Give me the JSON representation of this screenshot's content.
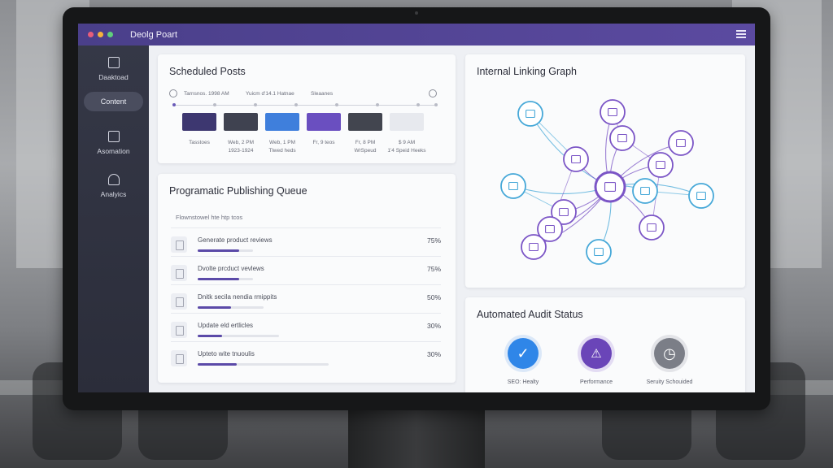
{
  "app": {
    "title": "Deolg Poart",
    "window_dots": [
      "#e85d7a",
      "#f5b23d",
      "#5fcf7c"
    ]
  },
  "sidebar": {
    "items": [
      {
        "label": "Daaktoad",
        "icon": "dashboard-icon"
      },
      {
        "label": "Content",
        "icon": null,
        "active": true
      },
      {
        "label": "Asomation",
        "icon": "automation-icon"
      },
      {
        "label": "Analyics",
        "icon": "analytics-icon"
      }
    ]
  },
  "scheduled_posts": {
    "title": "Scheduled Posts",
    "meta_left": "Tarnsnos. 1998 AM",
    "meta_mid": "Yuicm d'14.1 Hatnae",
    "meta_right": "Sleaanes",
    "posts": [
      {
        "color": "#3d3770",
        "line1": "Tasstoes",
        "line2": ""
      },
      {
        "color": "#3f4250",
        "line1": "Web, 2 PM",
        "line2": "1923-1924"
      },
      {
        "color": "#3f7fdc",
        "line1": "Web, 1 PM",
        "line2": "Tlwed heds"
      },
      {
        "color": "#6a4fc0",
        "line1": "Fr, 9 teos",
        "line2": ""
      },
      {
        "color": "#42454f",
        "line1": "Fr, 8 PM",
        "line2": "WrSpeud"
      },
      {
        "color": "#e7e9ee",
        "line1": "$ 9 AM",
        "line2": "1'4 Speid Heeks"
      }
    ]
  },
  "queue": {
    "title": "Programatic Publishing Queue",
    "subtitle": "Flownstowel hte htp tcos",
    "rows": [
      {
        "label": "Generate product reviews",
        "pct_text": "75%",
        "progress": 0.75
      },
      {
        "label": "Dvolte prcduct vevlews",
        "pct_text": "75%",
        "progress": 0.75
      },
      {
        "label": "Dnitk secila nendia rmippits",
        "pct_text": "50%",
        "progress": 0.5
      },
      {
        "label": "Update eld ertlicles",
        "pct_text": "30%",
        "progress": 0.3
      },
      {
        "label": "Upteto wite tnuoulis",
        "pct_text": "30%",
        "progress": 0.3
      }
    ]
  },
  "graph": {
    "title": "Internal Linking Graph",
    "colors": {
      "purple": "#7b55c6",
      "blue": "#46a8d8"
    }
  },
  "audit": {
    "title": "Automated Audit Status",
    "items": [
      {
        "label": "SEO: Healty",
        "icon": "check-icon",
        "glyph": "✓",
        "color": "#2f86e8"
      },
      {
        "label": "Performance",
        "icon": "warning-icon",
        "glyph": "⚠",
        "color": "#6a45b8"
      },
      {
        "label": "Seruity Schouided",
        "icon": "clock-icon",
        "glyph": "◷",
        "color": "#7b7e87"
      }
    ]
  }
}
